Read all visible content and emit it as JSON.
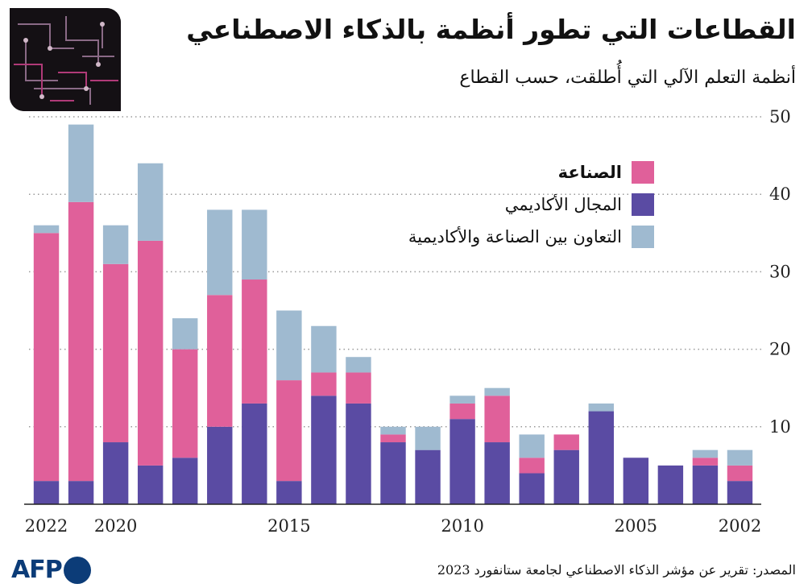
{
  "header": {
    "title": "القطاعات التي تطور أنظمة بالذكاء الاصطناعي",
    "subtitle": "أنظمة التعلم الآلي التي أُطلقت، حسب القطاع"
  },
  "colors": {
    "industry": "#e0609a",
    "academia": "#5a4ba3",
    "collaboration": "#9fbad0",
    "brand": "#0c3c78"
  },
  "footer": {
    "source": "المصدر: تقرير عن مؤشر الذكاء الاصطناعي لجامعة ستانفورد 2023",
    "logo_text": "AFP"
  },
  "chart_data": {
    "type": "bar",
    "stacked": true,
    "title": "القطاعات التي تطور أنظمة بالذكاء الاصطناعي",
    "subtitle": "أنظمة التعلم الآلي التي أُطلقت، حسب القطاع",
    "x_direction": "right-to-left",
    "categories": [
      "2022",
      "2021",
      "2020",
      "2019",
      "2018",
      "2017",
      "2016",
      "2015",
      "2014",
      "2013",
      "2012",
      "2011",
      "2010",
      "2009",
      "2008",
      "2007",
      "2006",
      "2005",
      "2004",
      "2003",
      "2002"
    ],
    "x_tick_labels": [
      "2022",
      "2020",
      "2015",
      "2010",
      "2005",
      "2002"
    ],
    "y_ticks": [
      10,
      20,
      30,
      40,
      50
    ],
    "ylim": [
      0,
      50
    ],
    "grid": "horizontal-dotted",
    "legend_position": "top-right",
    "series": [
      {
        "name": "الأكاديمي المجال",
        "key": "academia",
        "values": [
          3,
          3,
          8,
          5,
          6,
          10,
          13,
          3,
          14,
          13,
          8,
          7,
          11,
          8,
          4,
          7,
          12,
          6,
          5,
          5,
          3
        ]
      },
      {
        "name": "الصناعة",
        "key": "industry",
        "values": [
          32,
          36,
          23,
          29,
          14,
          17,
          16,
          13,
          3,
          4,
          1,
          0,
          2,
          6,
          2,
          2,
          0,
          0,
          0,
          1,
          2
        ]
      },
      {
        "name": "التعاون بين الصناعة والأكاديمية",
        "key": "collaboration",
        "values": [
          1,
          10,
          5,
          10,
          4,
          11,
          9,
          9,
          6,
          2,
          1,
          3,
          1,
          1,
          3,
          0,
          1,
          0,
          0,
          1,
          2
        ]
      }
    ],
    "legend": [
      {
        "key": "industry",
        "label": "الصناعة"
      },
      {
        "key": "academia",
        "label": "المجال الأكاديمي"
      },
      {
        "key": "collaboration",
        "label": "التعاون بين الصناعة والأكاديمية"
      }
    ]
  }
}
